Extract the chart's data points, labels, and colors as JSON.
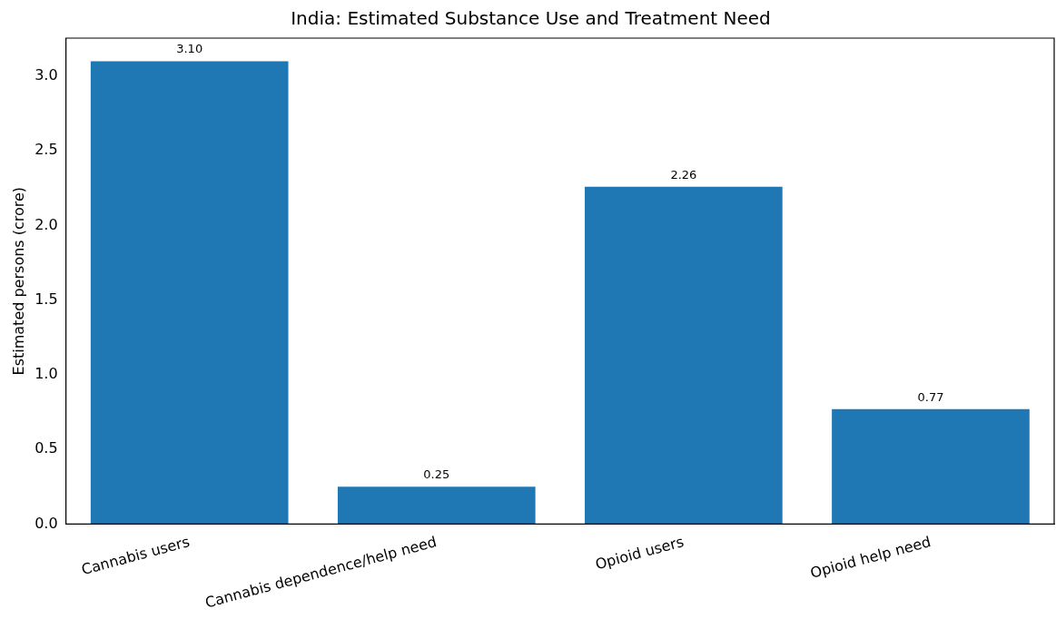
{
  "chart_data": {
    "type": "bar",
    "title": "India: Estimated Substance Use and Treatment Need",
    "ylabel": "Estimated persons (crore)",
    "categories": [
      "Cannabis users",
      "Cannabis dependence/help need",
      "Opioid users",
      "Opioid help need"
    ],
    "values": [
      3.1,
      0.25,
      2.26,
      0.77
    ],
    "color": "#1f77b4",
    "value_labels": [
      "3.10",
      "0.25",
      "2.26",
      "0.77"
    ],
    "ylim": [
      0,
      3.255
    ],
    "yticks": [
      {
        "value": 0,
        "label": "0.0"
      },
      {
        "value": 0.5,
        "label": "0.5"
      },
      {
        "value": 1,
        "label": "1.0"
      },
      {
        "value": 1.5,
        "label": "1.5"
      },
      {
        "value": 2,
        "label": "2.0"
      },
      {
        "value": 2.5,
        "label": "2.5"
      },
      {
        "value": 3,
        "label": "3.0"
      }
    ],
    "grid": false,
    "legend": false
  }
}
